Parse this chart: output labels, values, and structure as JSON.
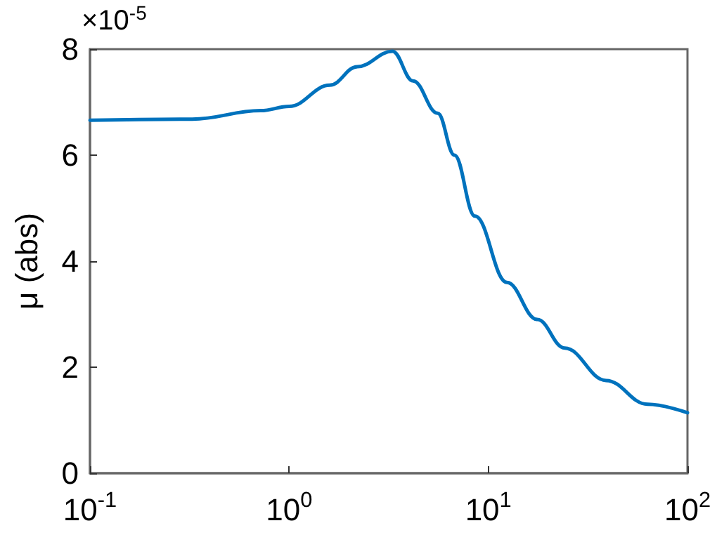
{
  "chart_data": {
    "type": "line",
    "ylabel": "μ (abs)",
    "annotations": [
      "×10$^{-5}$"
    ],
    "x": [
      0.1,
      0.326,
      0.72,
      1,
      1.6,
      2.2,
      3.3,
      4.19,
      5.57,
      6.76,
      8.57,
      12.4,
      17.6,
      24.2,
      39,
      63,
      100
    ],
    "series": [
      {
        "color": "#0072bd",
        "values": [
          6.66,
          6.68,
          6.84,
          6.92,
          7.32,
          7.67,
          7.96,
          7.4,
          6.79,
          6.0,
          4.85,
          3.6,
          2.9,
          2.36,
          1.75,
          1.3,
          1.14
        ]
      }
    ],
    "log": "x",
    "xlim": [
      0.1,
      100
    ],
    "xticks": [
      {
        "value": 0.1,
        "label": "10$^{-1}$"
      },
      {
        "value": 1,
        "label": "10$^{0}$"
      },
      {
        "value": 10,
        "label": "10$^{1}$"
      },
      {
        "value": 100,
        "label": "10$^{2}$"
      }
    ],
    "ylim": [
      0,
      8
    ],
    "yticks": [
      0,
      2,
      4,
      6,
      8
    ],
    "grid": false,
    "marker": "none",
    "line_style": "solid"
  }
}
